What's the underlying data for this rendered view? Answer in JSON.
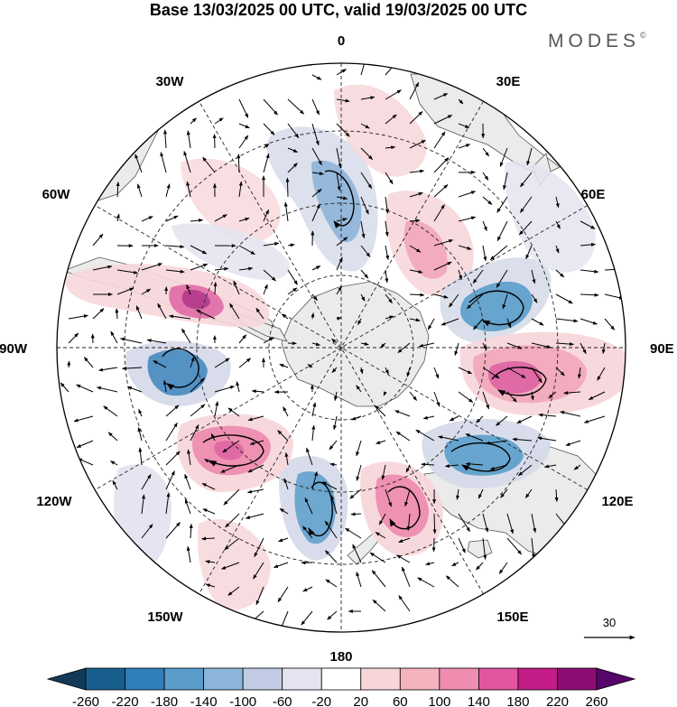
{
  "title": "Base 13/03/2025 00 UTC, valid 19/03/2025 00 UTC",
  "brand": "MODES",
  "brand_mark": "©",
  "meridian_labels": [
    "0",
    "30E",
    "60E",
    "90E",
    "120E",
    "150E",
    "180",
    "150W",
    "120W",
    "90W",
    "60W",
    "30W"
  ],
  "vector_reference": "30",
  "colorbar": {
    "ticks": [
      "-260",
      "-220",
      "-180",
      "-140",
      "-100",
      "-60",
      "-20",
      "20",
      "60",
      "100",
      "140",
      "180",
      "220",
      "260"
    ],
    "colors": [
      "#123a57",
      "#185f8f",
      "#2f7fb8",
      "#5a9dcb",
      "#8cb6d9",
      "#c1cce4",
      "#e4e4f0",
      "#ffffff",
      "#f7d6da",
      "#f4b3bd",
      "#ee8db0",
      "#e0559e",
      "#c21c87",
      "#8c0e74",
      "#56066b"
    ]
  },
  "colors": {
    "land": "#ebebeb",
    "coast": "#555555",
    "negative_strong": "#3c85bd",
    "negative_mid": "#8db4d8",
    "negative_weak": "#d7dbea",
    "positive_weak": "#f7d7db",
    "positive_mid": "#f1aabb",
    "positive_strong": "#e06aa5",
    "positive_max": "#b43a8c"
  }
}
